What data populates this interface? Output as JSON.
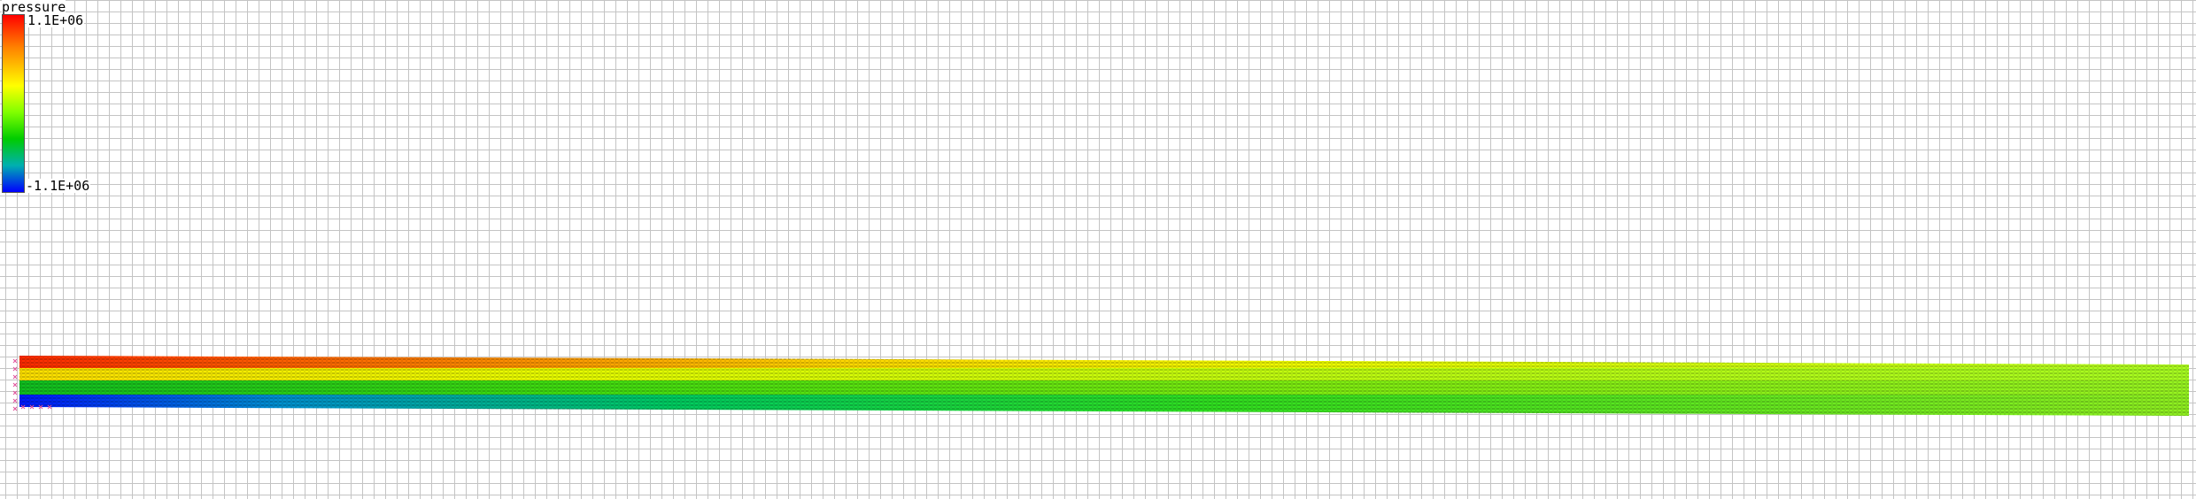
{
  "legend": {
    "title": "pressure",
    "max_label": "1.1E+06",
    "min_label": "-1.1E+06"
  },
  "colormap": [
    "#0000ff",
    "#00b0b0",
    "#00cc00",
    "#80ff00",
    "#ffff00",
    "#ff8000",
    "#ff0000"
  ]
}
